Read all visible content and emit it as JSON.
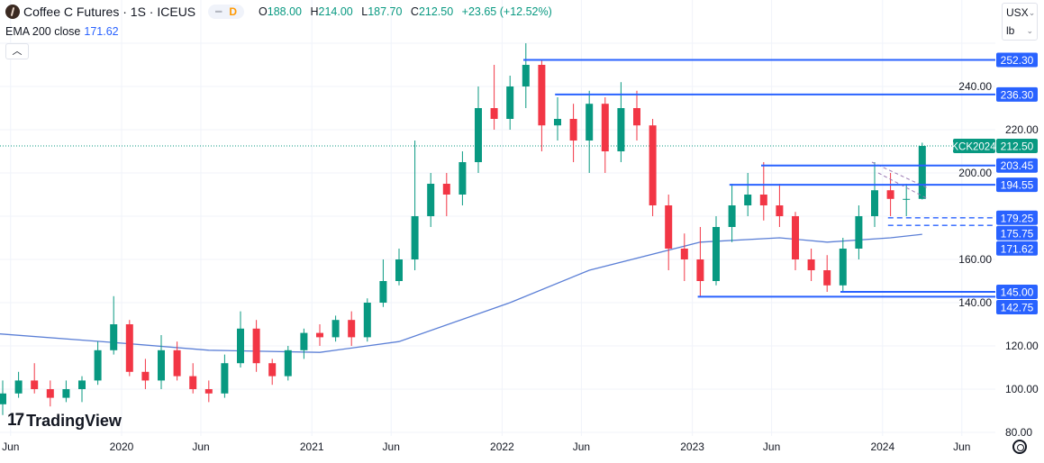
{
  "header": {
    "symbol": "Coffee C Futures · 1S · ICEUS",
    "mode_badge": "D",
    "open_label": "O",
    "open": "188.00",
    "high_label": "H",
    "high": "214.00",
    "low_label": "L",
    "low": "187.70",
    "close_label": "C",
    "close": "212.50",
    "change": "+23.65 (+12.52%)"
  },
  "indicator": {
    "name": "EMA 200 close",
    "value": "171.62"
  },
  "units": {
    "currency": "USX",
    "unit": "lb"
  },
  "branding": "TradingView",
  "colors": {
    "up": "#089981",
    "down": "#f23645",
    "level": "#2962ff",
    "ema": "#5b7fd6",
    "last": "#089981",
    "triangle": "#9c7bb5"
  },
  "chart_data": {
    "type": "candlestick",
    "ylim": [
      80,
      262
    ],
    "y_ticks": [
      "80.00",
      "100.00",
      "120.00",
      "140.00",
      "160.00",
      "200.00",
      "220.00",
      "240.00"
    ],
    "x_ticks": [
      [
        "Jun",
        "2019-06"
      ],
      [
        "2020",
        "2020-01"
      ],
      [
        "Jun",
        "2020-06"
      ],
      [
        "2021",
        "2021-01"
      ],
      [
        "Jun",
        "2021-06"
      ],
      [
        "2022",
        "2022-01"
      ],
      [
        "Jun",
        "2022-06"
      ],
      [
        "2023",
        "2023-01"
      ],
      [
        "Jun",
        "2023-06"
      ],
      [
        "2024",
        "2024-01"
      ],
      [
        "Jun",
        "2024-06"
      ]
    ],
    "candles": [
      [
        "2019-05",
        93,
        104,
        88,
        98
      ],
      [
        "2019-06",
        98,
        108,
        96,
        104
      ],
      [
        "2019-07",
        104,
        112,
        98,
        100
      ],
      [
        "2019-08",
        100,
        104,
        92,
        96
      ],
      [
        "2019-09",
        96,
        104,
        94,
        100
      ],
      [
        "2019-10",
        100,
        106,
        94,
        104
      ],
      [
        "2019-11",
        104,
        122,
        102,
        118
      ],
      [
        "2019-12",
        118,
        143,
        116,
        130
      ],
      [
        "2020-01",
        130,
        132,
        106,
        108
      ],
      [
        "2020-02",
        108,
        114,
        100,
        104
      ],
      [
        "2020-03",
        104,
        125,
        100,
        118
      ],
      [
        "2020-04",
        118,
        122,
        104,
        106
      ],
      [
        "2020-05",
        106,
        112,
        98,
        100
      ],
      [
        "2020-06",
        100,
        104,
        94,
        98
      ],
      [
        "2020-07",
        98,
        116,
        96,
        112
      ],
      [
        "2020-08",
        112,
        136,
        110,
        128
      ],
      [
        "2020-09",
        128,
        132,
        108,
        112
      ],
      [
        "2020-10",
        112,
        114,
        102,
        106
      ],
      [
        "2020-11",
        106,
        120,
        104,
        118
      ],
      [
        "2020-12",
        118,
        128,
        114,
        126
      ],
      [
        "2021-01",
        126,
        130,
        120,
        124
      ],
      [
        "2021-02",
        124,
        134,
        122,
        132
      ],
      [
        "2021-03",
        132,
        136,
        120,
        124
      ],
      [
        "2021-04",
        124,
        142,
        122,
        140
      ],
      [
        "2021-05",
        140,
        160,
        138,
        150
      ],
      [
        "2021-06",
        150,
        165,
        148,
        160
      ],
      [
        "2021-07",
        160,
        215,
        155,
        180
      ],
      [
        "2021-08",
        180,
        200,
        175,
        195
      ],
      [
        "2021-09",
        195,
        200,
        180,
        190
      ],
      [
        "2021-10",
        190,
        210,
        185,
        205
      ],
      [
        "2021-11",
        205,
        240,
        200,
        230
      ],
      [
        "2021-12",
        230,
        250,
        220,
        225
      ],
      [
        "2022-01",
        225,
        245,
        220,
        240
      ],
      [
        "2022-02",
        240,
        260,
        230,
        250
      ],
      [
        "2022-03",
        250,
        252,
        210,
        222
      ],
      [
        "2022-04",
        222,
        235,
        215,
        225
      ],
      [
        "2022-05",
        225,
        232,
        205,
        215
      ],
      [
        "2022-06",
        215,
        238,
        200,
        232
      ],
      [
        "2022-07",
        232,
        235,
        200,
        210
      ],
      [
        "2022-08",
        210,
        242,
        205,
        230
      ],
      [
        "2022-09",
        230,
        238,
        215,
        222
      ],
      [
        "2022-10",
        222,
        225,
        180,
        185
      ],
      [
        "2022-11",
        185,
        190,
        155,
        165
      ],
      [
        "2022-12",
        165,
        172,
        150,
        160
      ],
      [
        "2023-01",
        160,
        175,
        142.75,
        150
      ],
      [
        "2023-02",
        150,
        180,
        148,
        175
      ],
      [
        "2023-03",
        175,
        195,
        168,
        185
      ],
      [
        "2023-04",
        185,
        200,
        180,
        190
      ],
      [
        "2023-05",
        190,
        205,
        178,
        185
      ],
      [
        "2023-06",
        185,
        195,
        175,
        180
      ],
      [
        "2023-07",
        180,
        182,
        155,
        160
      ],
      [
        "2023-08",
        160,
        165,
        150,
        155
      ],
      [
        "2023-09",
        155,
        162,
        145,
        148
      ],
      [
        "2023-10",
        148,
        170,
        145,
        165
      ],
      [
        "2023-11",
        165,
        185,
        160,
        180
      ],
      [
        "2023-12",
        180,
        205,
        175,
        192
      ],
      [
        "2024-01",
        192,
        200,
        180,
        188
      ],
      [
        "2024-02",
        188,
        195,
        180,
        188
      ],
      [
        "2024-03",
        188,
        214,
        187.7,
        212.5
      ]
    ],
    "ema": {
      "name": "EMA 200 close",
      "points": [
        [
          "2019-04",
          126
        ],
        [
          "2020-01",
          121
        ],
        [
          "2020-06",
          118
        ],
        [
          "2021-01",
          117
        ],
        [
          "2021-06",
          122
        ],
        [
          "2022-01",
          140
        ],
        [
          "2022-06",
          155
        ],
        [
          "2023-01",
          168
        ],
        [
          "2023-06",
          170
        ],
        [
          "2023-09",
          168
        ],
        [
          "2024-01",
          170
        ],
        [
          "2024-03",
          171.62
        ]
      ]
    },
    "levels": [
      {
        "label": "252.30",
        "value": 252.3,
        "from": "2022-02",
        "style": "solid"
      },
      {
        "label": "236.30",
        "value": 236.3,
        "from": "2022-04",
        "style": "solid"
      },
      {
        "label": "203.45",
        "value": 203.45,
        "from": "2023-05",
        "style": "solid"
      },
      {
        "label": "194.55",
        "value": 194.55,
        "from": "2023-03",
        "style": "solid"
      },
      {
        "label": "179.25",
        "value": 179.25,
        "from": "2024-01",
        "style": "dashed"
      },
      {
        "label": "175.75",
        "value": 175.75,
        "from": "2024-01",
        "style": "dashed"
      },
      {
        "label": "145.00",
        "value": 145.0,
        "from": "2023-10",
        "style": "solid"
      },
      {
        "label": "142.75",
        "value": 142.75,
        "from": "2023-01",
        "style": "solid"
      }
    ],
    "ema_label": "171.62",
    "last_price": {
      "symbol": "KCK2024",
      "label": "212.50",
      "value": 212.5
    }
  }
}
